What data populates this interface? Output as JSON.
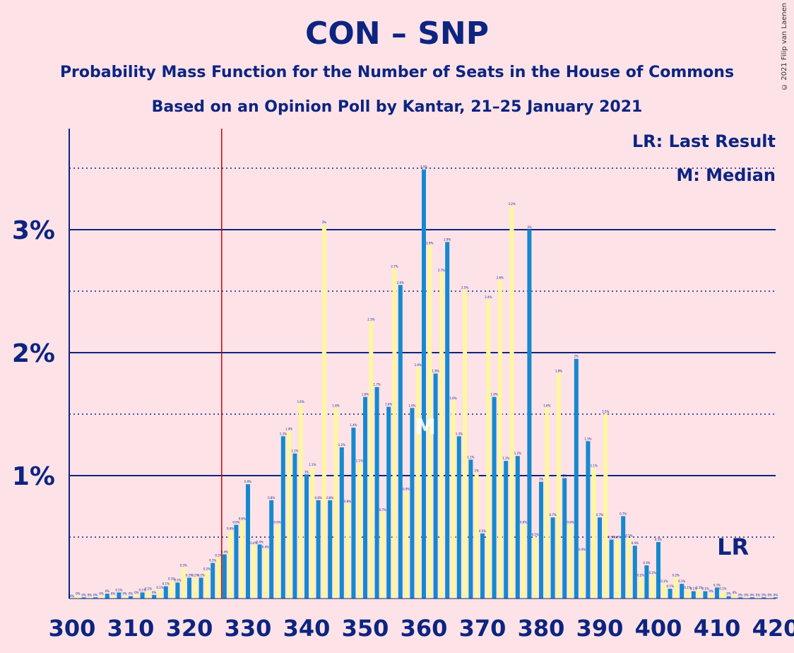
{
  "chart_data": {
    "type": "bar",
    "title": "CON – SNP",
    "subtitle": "Probability Mass Function for the Number of Seats in the House of Commons",
    "subtitle2": "Based on an Opinion Poll by Kantar, 21–25 January 2021",
    "copyright": "© 2021 Filip van Laenen",
    "legend": [
      "LR: Last Result",
      "M: Median"
    ],
    "xlim": [
      300,
      420
    ],
    "ylim": [
      0,
      3.8
    ],
    "x_ticks": [
      "300",
      "310",
      "320",
      "330",
      "340",
      "350",
      "360",
      "370",
      "380",
      "390",
      "400",
      "410",
      "420"
    ],
    "y_ticks": [
      {
        "value": 1,
        "label": "1%"
      },
      {
        "value": 2,
        "label": "2%"
      },
      {
        "value": 3,
        "label": "3%"
      }
    ],
    "dotted_levels": [
      0.5,
      1.5,
      2.5,
      3.5
    ],
    "majority_line": 326,
    "last_result_label": "LR",
    "last_result_seat": 412,
    "median_label": "M",
    "median_seat": 360,
    "seats": [
      300,
      301,
      302,
      303,
      304,
      305,
      306,
      307,
      308,
      309,
      310,
      311,
      312,
      313,
      314,
      315,
      316,
      317,
      318,
      319,
      320,
      321,
      322,
      323,
      324,
      325,
      326,
      327,
      328,
      329,
      330,
      331,
      332,
      333,
      334,
      335,
      336,
      337,
      338,
      339,
      340,
      341,
      342,
      343,
      344,
      345,
      346,
      347,
      348,
      349,
      350,
      351,
      352,
      353,
      354,
      355,
      356,
      357,
      358,
      359,
      360,
      361,
      362,
      363,
      364,
      365,
      366,
      367,
      368,
      369,
      370,
      371,
      372,
      373,
      374,
      375,
      376,
      377,
      378,
      379,
      380,
      381,
      382,
      383,
      384,
      385,
      386,
      387,
      388,
      389,
      390,
      391,
      392,
      393,
      394,
      395,
      396,
      397,
      398,
      399,
      400,
      401,
      402,
      403,
      404,
      405,
      406,
      407,
      408,
      409,
      410,
      411,
      412,
      413,
      414,
      415,
      416,
      417,
      418,
      419,
      420
    ],
    "values": [
      0.0,
      0.02,
      0.01,
      0.01,
      0.01,
      0.02,
      0.04,
      0.02,
      0.05,
      0.02,
      0.02,
      0.03,
      0.05,
      0.06,
      0.03,
      0.07,
      0.1,
      0.14,
      0.13,
      0.25,
      0.17,
      0.17,
      0.17,
      0.22,
      0.29,
      0.33,
      0.36,
      0.55,
      0.6,
      0.63,
      0.93,
      0.43,
      0.44,
      0.4,
      0.8,
      0.6,
      1.32,
      1.36,
      1.18,
      1.58,
      1.01,
      1.07,
      0.8,
      3.04,
      0.8,
      1.55,
      1.23,
      0.77,
      1.39,
      1.1,
      1.64,
      2.25,
      1.72,
      0.7,
      1.56,
      2.68,
      2.55,
      0.87,
      1.55,
      1.88,
      3.49,
      2.87,
      1.83,
      2.65,
      2.9,
      1.61,
      1.32,
      2.51,
      1.13,
      1.02,
      0.53,
      2.43,
      1.64,
      2.59,
      1.12,
      3.19,
      1.16,
      0.6,
      3.0,
      0.5,
      0.95,
      1.55,
      0.66,
      1.83,
      0.98,
      0.6,
      1.95,
      0.38,
      1.28,
      1.06,
      0.66,
      1.5,
      0.48,
      0.48,
      0.67,
      0.49,
      0.43,
      0.17,
      0.27,
      0.19,
      0.46,
      0.12,
      0.08,
      0.17,
      0.12,
      0.07,
      0.06,
      0.07,
      0.06,
      0.04,
      0.09,
      0.06,
      0.02,
      0.03,
      0.01,
      0.01,
      0.01,
      0.01,
      0.01,
      0.01,
      0.01
    ],
    "colors": {
      "blue": "#1589cf",
      "yellow": "#fff6a0",
      "text": "#0d2480",
      "majority": "#cc0000",
      "background": "#fde3e8"
    }
  }
}
